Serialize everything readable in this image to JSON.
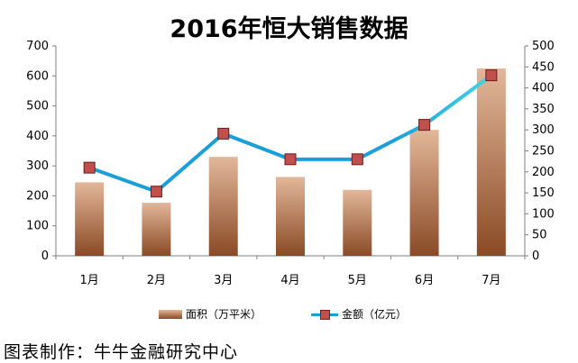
{
  "title": "2016年恒大销售数据",
  "footer": "图表制作：牛牛金融研究中心",
  "chart_data": {
    "type": "bar",
    "title": "2016年恒大销售数据",
    "categories": [
      "1月",
      "2月",
      "3月",
      "4月",
      "5月",
      "6月",
      "7月"
    ],
    "series": [
      {
        "name": "面积（万平米）",
        "type": "bar",
        "axis": "left",
        "values": [
          245,
          177,
          330,
          263,
          220,
          420,
          625
        ]
      },
      {
        "name": "金额（亿元）",
        "type": "line",
        "axis": "right",
        "values": [
          210,
          153,
          291,
          230,
          230,
          312,
          430
        ]
      }
    ],
    "ylim_left": [
      0,
      700
    ],
    "yticks_left": [
      "0",
      "100",
      "200",
      "300",
      "400",
      "500",
      "600",
      "700"
    ],
    "ylim_right": [
      0,
      500
    ],
    "yticks_right": [
      "0",
      "50",
      "100",
      "150",
      "200",
      "250",
      "300",
      "350",
      "400",
      "450",
      "500"
    ],
    "grid": false,
    "legend": "bottom",
    "colors": {
      "bar_top": "#e2b79a",
      "bar_bottom": "#8a4a25",
      "line": "#1a9fd8",
      "line_end": "#3fd6e6",
      "marker": "#c0504d"
    }
  }
}
